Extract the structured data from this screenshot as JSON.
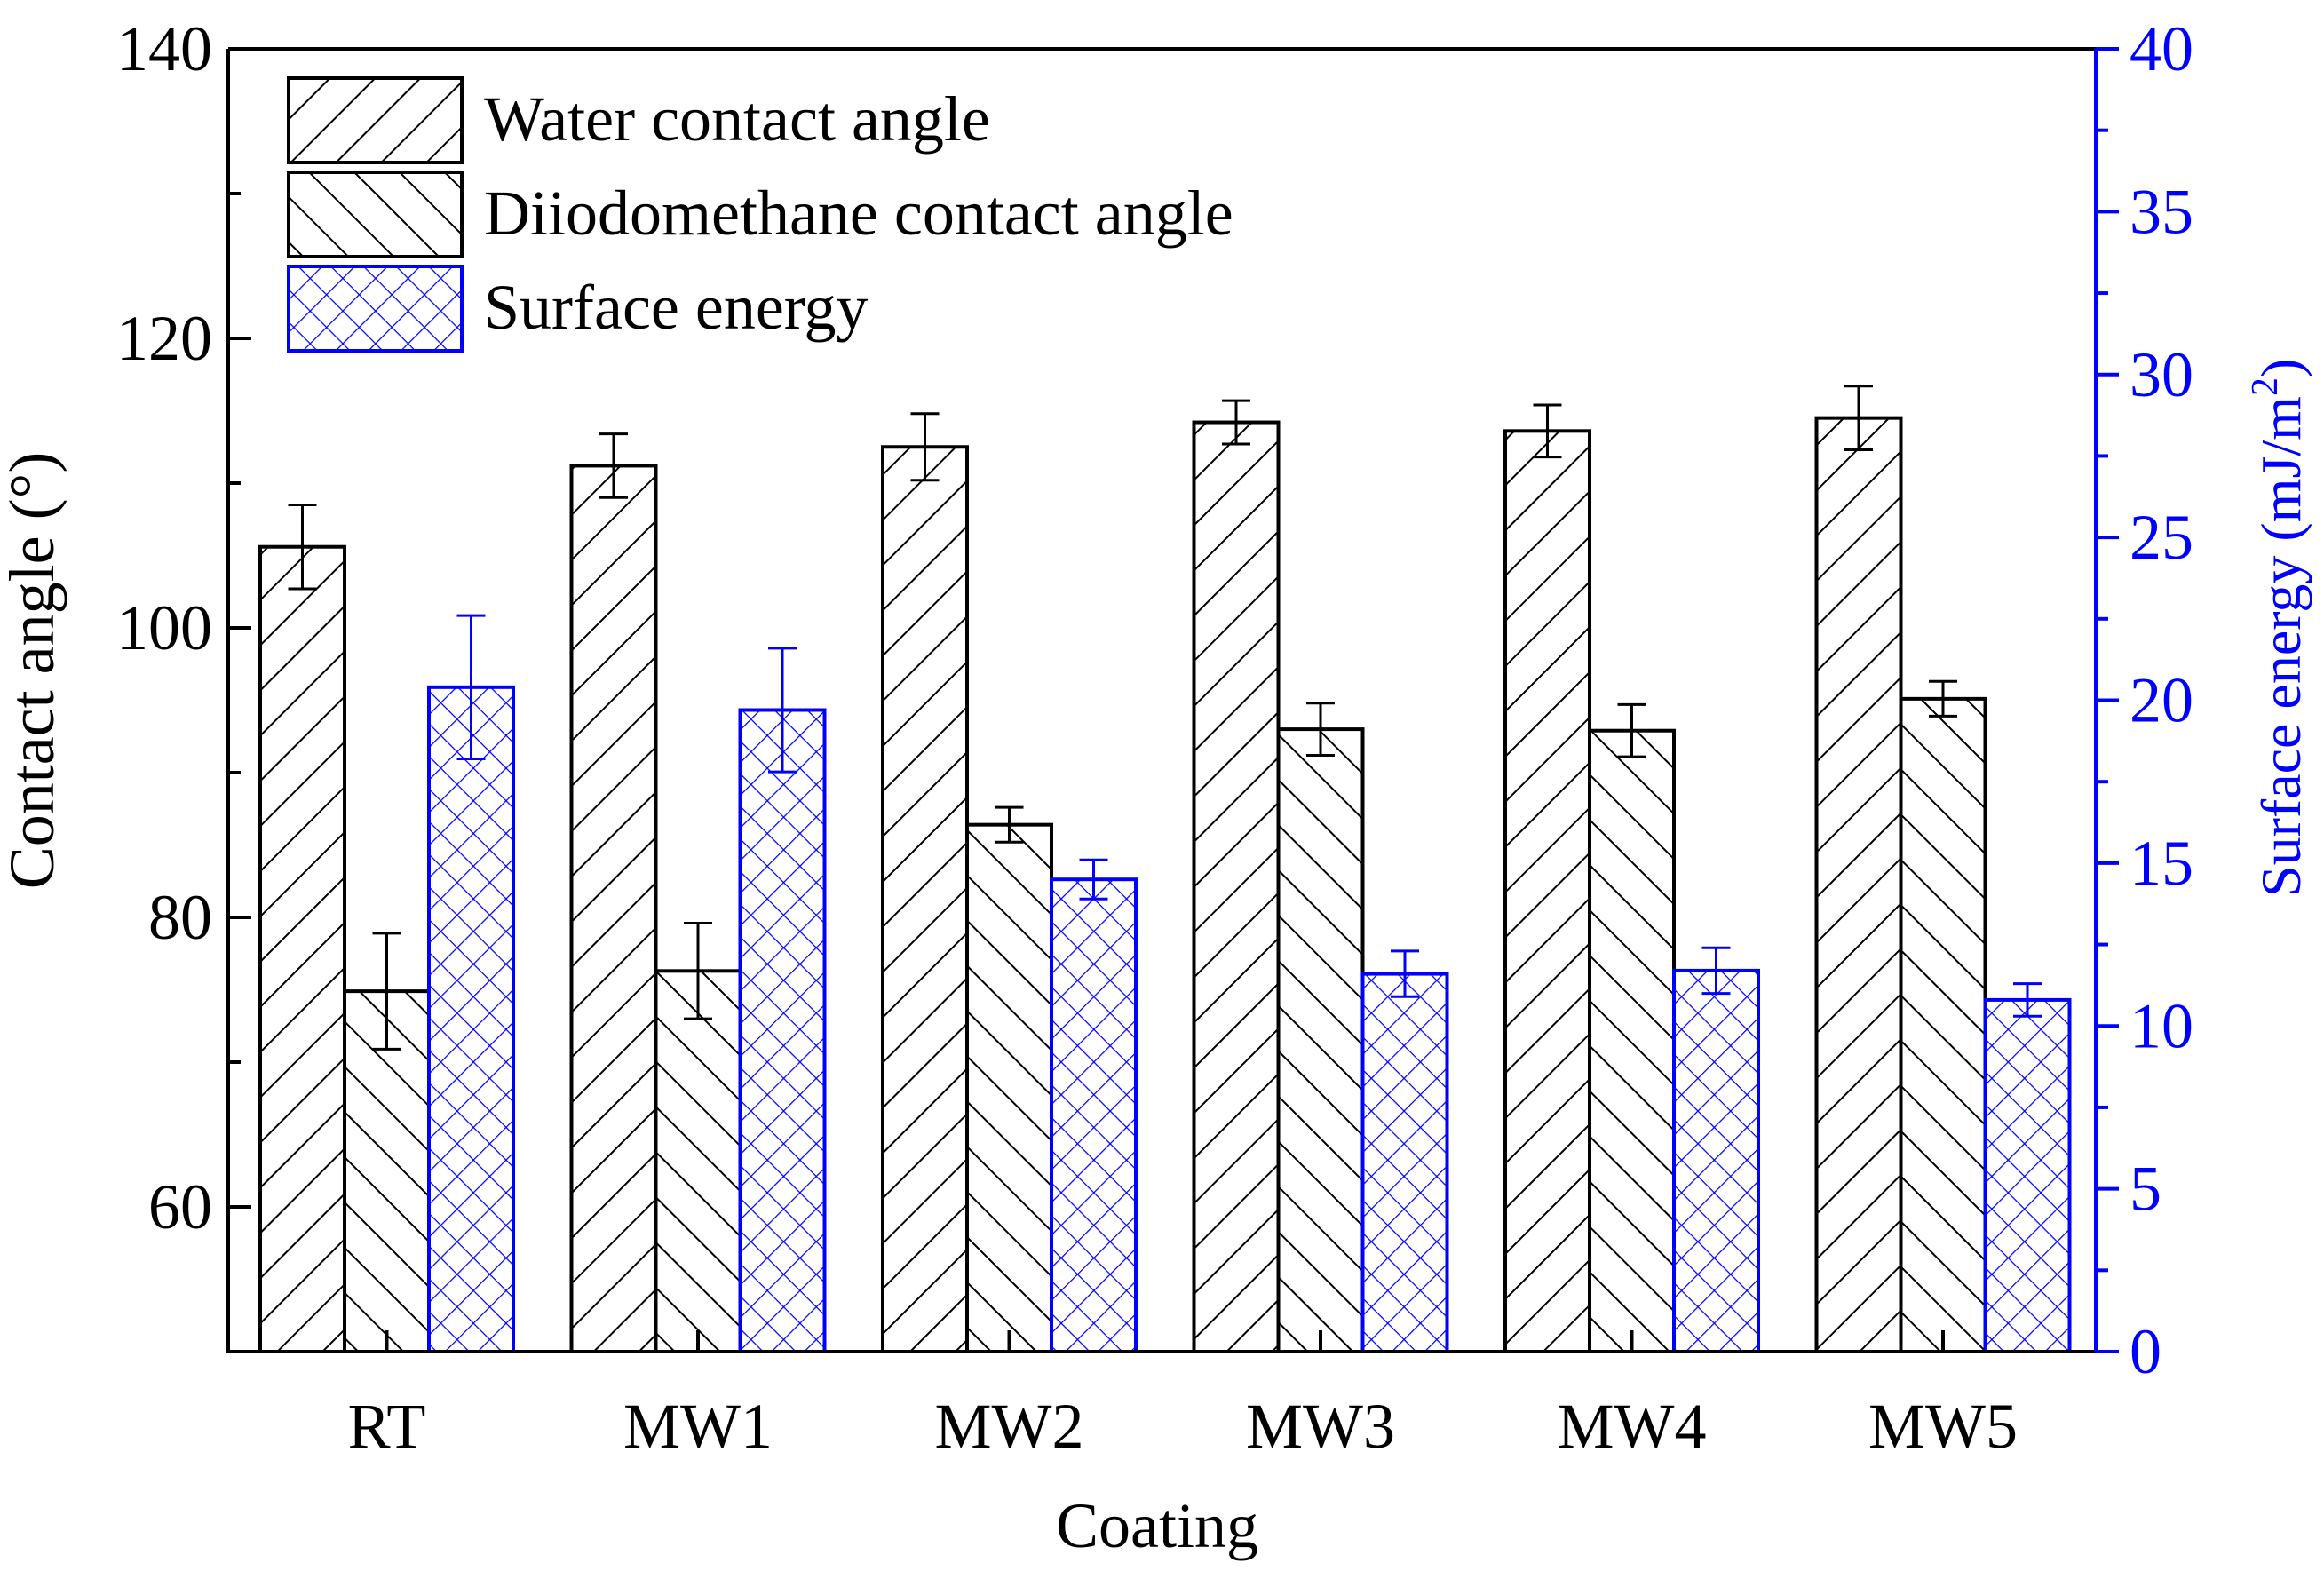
{
  "chart_data": {
    "type": "bar",
    "xlabel": "Coating",
    "ylabel": "Contact angle (°)",
    "ylabel2": "Surface energy (mJ/m²)",
    "ylabel2_parts": {
      "base": "Surface energy (mJ/m",
      "sup": "2",
      "close": ")"
    },
    "ylim": [
      50,
      140
    ],
    "ylim2": [
      0,
      40
    ],
    "yticks": [
      60,
      80,
      100,
      120,
      140
    ],
    "yticks2": [
      0,
      5,
      10,
      15,
      20,
      25,
      30,
      35,
      40
    ],
    "categories": [
      "RT",
      "MW1",
      "MW2",
      "MW3",
      "MW4",
      "MW5"
    ],
    "series": [
      {
        "name": "Water contact angle",
        "axis": "left",
        "values": [
          105.6,
          111.2,
          112.5,
          114.2,
          113.6,
          114.5
        ],
        "errors": [
          2.9,
          2.2,
          2.3,
          1.5,
          1.8,
          2.2
        ],
        "color": "#000000",
        "hatch": "forward-diagonal"
      },
      {
        "name": "Diiodomethane contact angle",
        "axis": "left",
        "values": [
          74.9,
          76.3,
          86.4,
          93.0,
          92.9,
          95.1
        ],
        "errors": [
          4.0,
          3.3,
          1.2,
          1.8,
          1.8,
          1.2
        ],
        "color": "#000000",
        "hatch": "back-diagonal"
      },
      {
        "name": "Surface energy",
        "axis": "right",
        "values": [
          20.4,
          19.7,
          14.5,
          11.6,
          11.7,
          10.8
        ],
        "errors": [
          2.2,
          1.9,
          0.6,
          0.7,
          0.7,
          0.5
        ],
        "color": "#0000ff",
        "hatch": "cross"
      }
    ],
    "legend_position": "top-left",
    "grid": false
  }
}
